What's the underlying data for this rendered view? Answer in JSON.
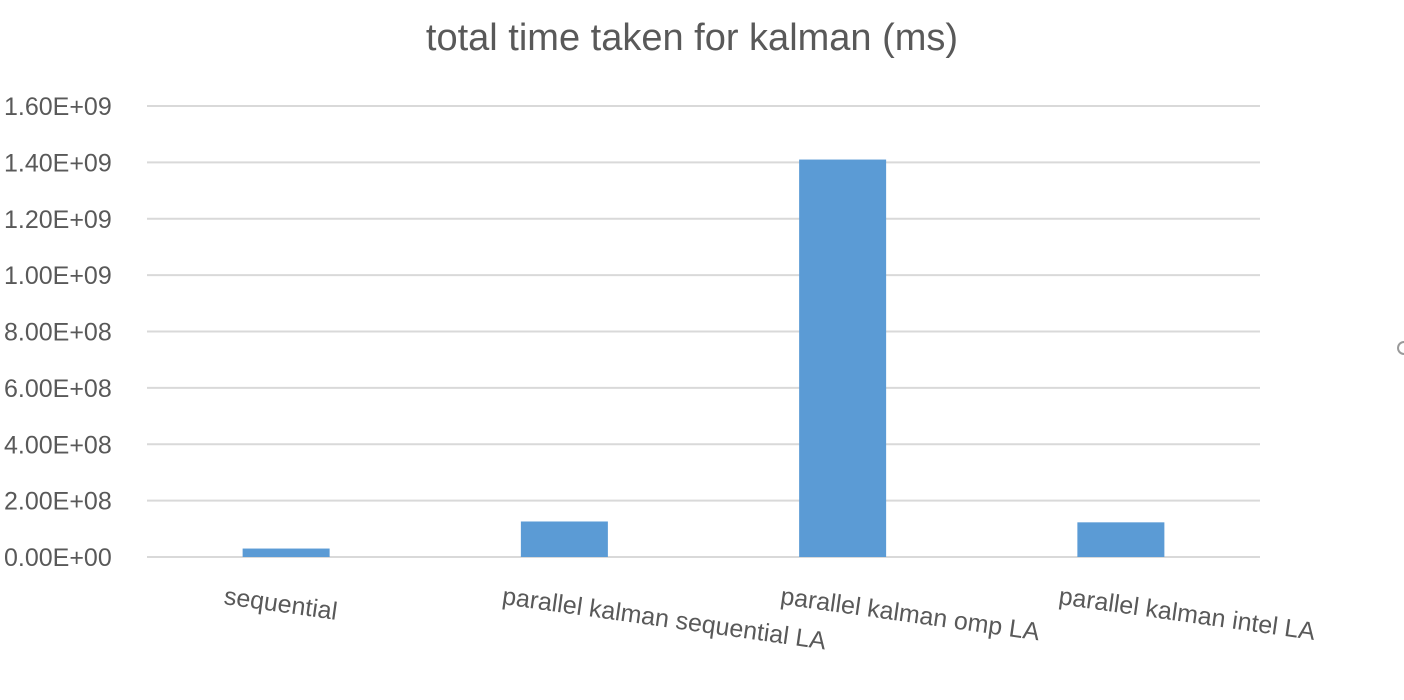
{
  "chart_data": {
    "type": "bar",
    "title": "total time taken for kalman (ms)",
    "categories": [
      "sequential",
      "parallel kalman sequential LA",
      "parallel kalman omp LA",
      "parallel kalman intel LA"
    ],
    "series": [
      {
        "values": [
          30000000,
          126000000,
          1410000000,
          123000000
        ],
        "color": "#5b9bd5"
      }
    ],
    "ylim": [
      0,
      1600000000
    ],
    "yticks": [
      0,
      200000000,
      400000000,
      600000000,
      800000000,
      1000000000,
      1200000000,
      1400000000,
      1600000000
    ],
    "ytick_labels": [
      "0.00E+00",
      "2.00E+08",
      "4.00E+08",
      "6.00E+08",
      "8.00E+08",
      "1.00E+09",
      "1.20E+09",
      "1.40E+09",
      "1.60E+09"
    ],
    "grid": true,
    "legend": "none",
    "gridline_color": "#d9d9d9",
    "text_color": "#595959"
  }
}
